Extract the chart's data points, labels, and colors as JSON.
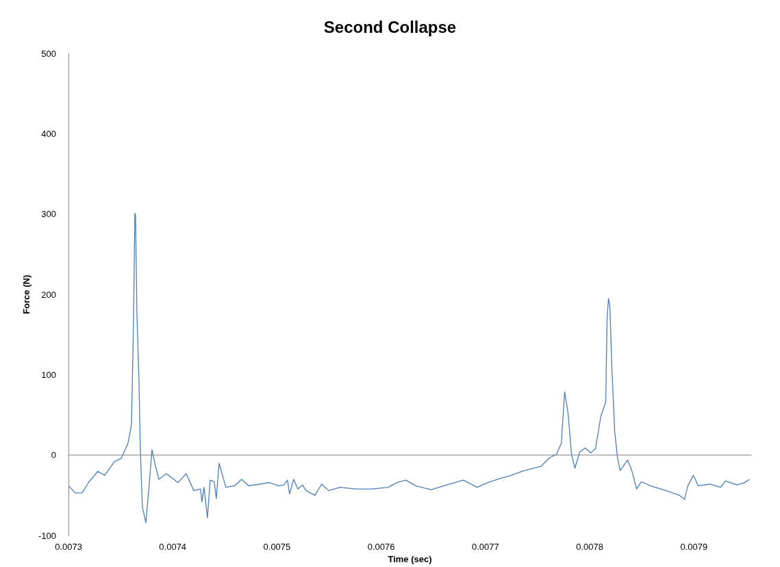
{
  "chart_data": {
    "type": "line",
    "title": "Second Collapse",
    "xlabel": "Time (sec)",
    "ylabel": "Force (N)",
    "xlim": [
      0.0073,
      0.007955
    ],
    "xticks": [
      0.0073,
      0.0074,
      0.0075,
      0.0076,
      0.0077,
      0.0078,
      0.0079
    ],
    "ylim": [
      -100,
      500
    ],
    "yticks": [
      -100,
      0,
      100,
      200,
      300,
      400,
      500
    ],
    "marker": "none",
    "line_style": "solid",
    "series": [
      {
        "color": "#4a7ebb",
        "x": [
          0.0073,
          0.0073066,
          0.0073131,
          0.0073197,
          0.0073282,
          0.0073348,
          0.007344,
          0.0073506,
          0.0073571,
          0.0073604,
          0.0073611,
          0.0073624,
          0.0073637,
          0.0073643,
          0.0073657,
          0.0073676,
          0.0073689,
          0.0073709,
          0.0073742,
          0.0073768,
          0.0073801,
          0.0073834,
          0.0073867,
          0.0073939,
          0.0074051,
          0.0074129,
          0.0074202,
          0.0074267,
          0.007428,
          0.00743,
          0.0074333,
          0.0074359,
          0.0074399,
          0.0074418,
          0.0074445,
          0.007451,
          0.0074596,
          0.0074661,
          0.0074727,
          0.0074839,
          0.0074924,
          0.0075016,
          0.0075068,
          0.0075101,
          0.0075121,
          0.007516,
          0.00752,
          0.0075246,
          0.0075278,
          0.0075364,
          0.0075429,
          0.0075495,
          0.0075607,
          0.0075758,
          0.0075909,
          0.0076066,
          0.0076152,
          0.0076237,
          0.0076329,
          0.007648,
          0.0076657,
          0.0076789,
          0.007692,
          0.0077025,
          0.0077137,
          0.0077248,
          0.0077353,
          0.0077465,
          0.0077531,
          0.0077616,
          0.0077682,
          0.0077728,
          0.007776,
          0.0077793,
          0.0077826,
          0.0077859,
          0.0077905,
          0.0077957,
          0.007801,
          0.0078056,
          0.0078108,
          0.0078154,
          0.0078167,
          0.0078181,
          0.0078194,
          0.0078213,
          0.007824,
          0.0078266,
          0.0078292,
          0.0078364,
          0.0078404,
          0.007845,
          0.0078496,
          0.0078581,
          0.0078732,
          0.0078863,
          0.0078909,
          0.0078942,
          0.0078995,
          0.0079041,
          0.0079152,
          0.0079257,
          0.0079303,
          0.0079415,
          0.0079487,
          0.0079533
        ],
        "values": [
          -38,
          -47,
          -47,
          -33,
          -20,
          -25,
          -8,
          -4,
          15,
          38,
          80,
          168,
          301,
          299,
          174,
          94,
          9,
          -64,
          -84,
          -47,
          7,
          -13,
          -30,
          -23,
          -34,
          -23,
          -44,
          -42,
          -58,
          -40,
          -78,
          -31,
          -33,
          -54,
          -10,
          -40,
          -38,
          -30,
          -38,
          -36,
          -34,
          -38,
          -37,
          -31,
          -48,
          -30,
          -42,
          -37,
          -44,
          -50,
          -36,
          -44,
          -40,
          -42,
          -42,
          -40,
          -34,
          -31,
          -38,
          -43,
          -36,
          -31,
          -40,
          -34,
          -29,
          -25,
          -20,
          -16,
          -14,
          -3,
          1,
          15,
          79,
          52,
          1,
          -16,
          4,
          9,
          3,
          8,
          49,
          66,
          170,
          195,
          185,
          108,
          30,
          -2,
          -19,
          -6,
          -19,
          -42,
          -33,
          -38,
          -44,
          -50,
          -55,
          -38,
          -25,
          -38,
          -36,
          -40,
          -32,
          -37,
          -34,
          -30
        ]
      }
    ]
  }
}
